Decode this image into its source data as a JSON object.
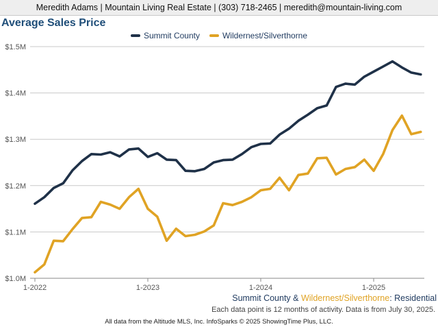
{
  "banner": "Meredith Adams | Mountain Living Real Estate | (303) 718-2465 | meredith@mountain-living.com",
  "subtitle": {
    "a": "Summit County",
    "amp": " & ",
    "b": "Wildernest/Silverthorne",
    "sep": ": ",
    "c": "Residential"
  },
  "note": "Each data point is 12 months of activity. Data is from July 30, 2025.",
  "footer": "All data from the Altitude MLS, Inc. InfoSparks © 2025 ShowingTime Plus, LLC.",
  "colors": {
    "summit": "#1f3148",
    "wildernest": "#e0a324",
    "title": "#1f4e79",
    "sub_blue": "#1f3a5f",
    "grid": "#c8c8c8"
  },
  "chart_data": {
    "type": "line",
    "title": "Average Sales Price",
    "xlabel": "",
    "ylabel": "",
    "ylim": [
      1000000,
      1500000
    ],
    "y_ticks": [
      "$1.0M",
      "$1.1M",
      "$1.2M",
      "$1.3M",
      "$1.4M",
      "$1.5M"
    ],
    "y_tick_values": [
      1000000,
      1100000,
      1200000,
      1300000,
      1400000,
      1500000
    ],
    "x_ticks": [
      "1-2022",
      "1-2023",
      "1-2024",
      "1-2025"
    ],
    "x_tick_index": [
      0,
      12,
      24,
      36
    ],
    "grid": true,
    "legend": "top-center",
    "x": [
      "2022-01",
      "2022-02",
      "2022-03",
      "2022-04",
      "2022-05",
      "2022-06",
      "2022-07",
      "2022-08",
      "2022-09",
      "2022-10",
      "2022-11",
      "2022-12",
      "2023-01",
      "2023-02",
      "2023-03",
      "2023-04",
      "2023-05",
      "2023-06",
      "2023-07",
      "2023-08",
      "2023-09",
      "2023-10",
      "2023-11",
      "2023-12",
      "2024-01",
      "2024-02",
      "2024-03",
      "2024-04",
      "2024-05",
      "2024-06",
      "2024-07",
      "2024-08",
      "2024-09",
      "2024-10",
      "2024-11",
      "2024-12",
      "2025-01",
      "2025-02",
      "2025-03",
      "2025-04",
      "2025-05",
      "2025-06"
    ],
    "series": [
      {
        "name": "Summit County",
        "values": [
          1161000,
          1175000,
          1195000,
          1205000,
          1233000,
          1253000,
          1268000,
          1267000,
          1272000,
          1263000,
          1278000,
          1280000,
          1262000,
          1270000,
          1256000,
          1255000,
          1232000,
          1231000,
          1236000,
          1250000,
          1255000,
          1256000,
          1268000,
          1283000,
          1290000,
          1291000,
          1310000,
          1323000,
          1340000,
          1353000,
          1367000,
          1373000,
          1413000,
          1420000,
          1418000,
          1435000,
          1446000,
          1457000,
          1468000,
          1455000,
          1444000,
          1440000
        ]
      },
      {
        "name": "Wildernest/Silverthorne",
        "values": [
          1013000,
          1030000,
          1081000,
          1080000,
          1106000,
          1130000,
          1132000,
          1165000,
          1159000,
          1150000,
          1175000,
          1193000,
          1150000,
          1133000,
          1081000,
          1107000,
          1091000,
          1094000,
          1101000,
          1114000,
          1162000,
          1158000,
          1165000,
          1175000,
          1190000,
          1193000,
          1217000,
          1190000,
          1223000,
          1226000,
          1259000,
          1260000,
          1224000,
          1236000,
          1240000,
          1256000,
          1232000,
          1268000,
          1320000,
          1351000,
          1311000,
          1316000
        ]
      }
    ]
  }
}
